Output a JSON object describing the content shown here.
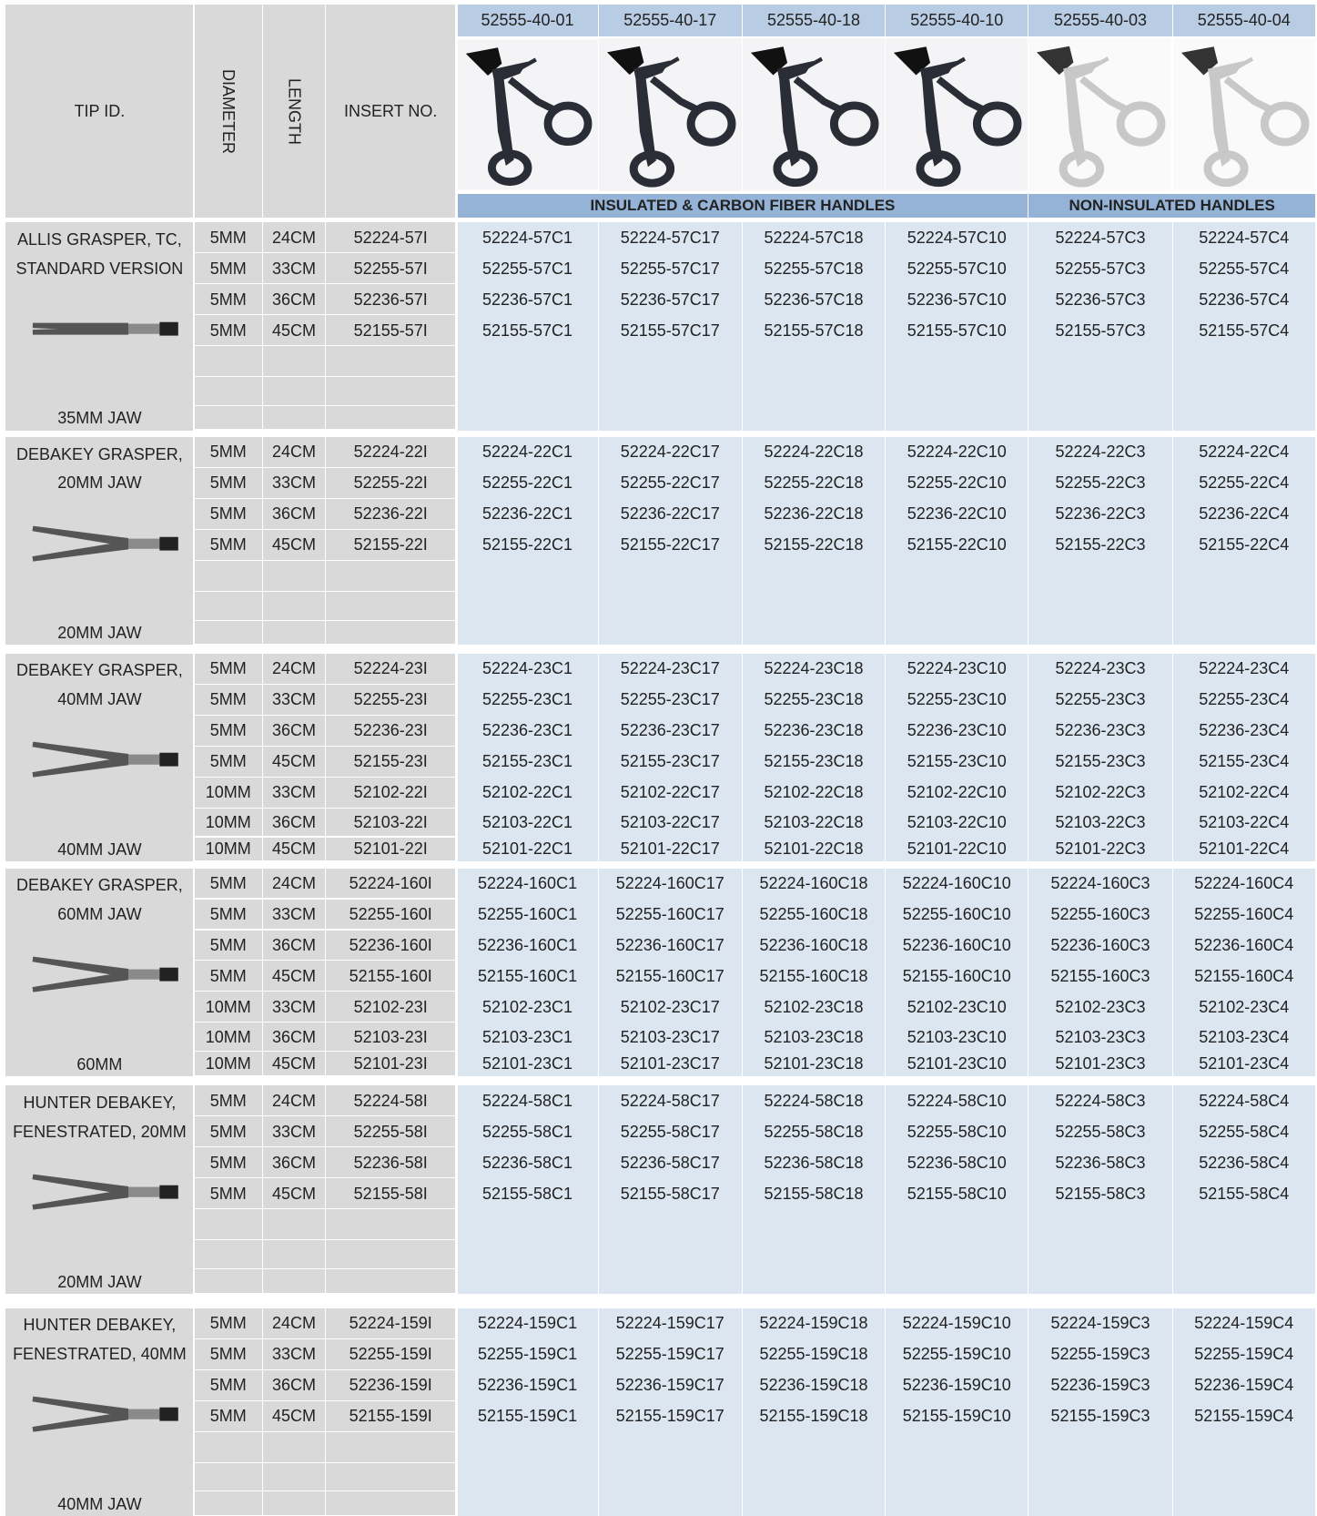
{
  "header": {
    "tip_id": "TIP ID.",
    "diameter": "DIAMETER",
    "length": "LENGTH",
    "insert_no": "INSERT NO.",
    "handles": [
      "52555-40-01",
      "52555-40-17",
      "52555-40-18",
      "52555-40-10",
      "52555-40-03",
      "52555-40-04"
    ],
    "handle_groups": [
      "INSULATED & CARBON FIBER HANDLES",
      "NON-INSULATED HANDLES"
    ]
  },
  "sections": [
    {
      "name_lines": [
        "ALLIS GRASPER, TC,",
        "STANDARD VERSION"
      ],
      "jaw": "35MM JAW",
      "rows": [
        [
          "5MM",
          "24CM",
          "52224-57I",
          "52224-57C1",
          "52224-57C17",
          "52224-57C18",
          "52224-57C10",
          "52224-57C3",
          "52224-57C4"
        ],
        [
          "5MM",
          "33CM",
          "52255-57I",
          "52255-57C1",
          "52255-57C17",
          "52255-57C18",
          "52255-57C10",
          "52255-57C3",
          "52255-57C4"
        ],
        [
          "5MM",
          "36CM",
          "52236-57I",
          "52236-57C1",
          "52236-57C17",
          "52236-57C18",
          "52236-57C10",
          "52236-57C3",
          "52236-57C4"
        ],
        [
          "5MM",
          "45CM",
          "52155-57I",
          "52155-57C1",
          "52155-57C17",
          "52155-57C18",
          "52155-57C10",
          "52155-57C3",
          "52155-57C4"
        ]
      ]
    },
    {
      "name_lines": [
        "DEBAKEY GRASPER,",
        "20MM JAW"
      ],
      "jaw": "20MM JAW",
      "rows": [
        [
          "5MM",
          "24CM",
          "52224-22I",
          "52224-22C1",
          "52224-22C17",
          "52224-22C18",
          "52224-22C10",
          "52224-22C3",
          "52224-22C4"
        ],
        [
          "5MM",
          "33CM",
          "52255-22I",
          "52255-22C1",
          "52255-22C17",
          "52255-22C18",
          "52255-22C10",
          "52255-22C3",
          "52255-22C4"
        ],
        [
          "5MM",
          "36CM",
          "52236-22I",
          "52236-22C1",
          "52236-22C17",
          "52236-22C18",
          "52236-22C10",
          "52236-22C3",
          "52236-22C4"
        ],
        [
          "5MM",
          "45CM",
          "52155-22I",
          "52155-22C1",
          "52155-22C17",
          "52155-22C18",
          "52155-22C10",
          "52155-22C3",
          "52155-22C4"
        ]
      ]
    },
    {
      "name_lines": [
        "DEBAKEY GRASPER,",
        "40MM JAW"
      ],
      "jaw": "40MM JAW",
      "rows": [
        [
          "5MM",
          "24CM",
          "52224-23I",
          "52224-23C1",
          "52224-23C17",
          "52224-23C18",
          "52224-23C10",
          "52224-23C3",
          "52224-23C4"
        ],
        [
          "5MM",
          "33CM",
          "52255-23I",
          "52255-23C1",
          "52255-23C17",
          "52255-23C18",
          "52255-23C10",
          "52255-23C3",
          "52255-23C4"
        ],
        [
          "5MM",
          "36CM",
          "52236-23I",
          "52236-23C1",
          "52236-23C17",
          "52236-23C18",
          "52236-23C10",
          "52236-23C3",
          "52236-23C4"
        ],
        [
          "5MM",
          "45CM",
          "52155-23I",
          "52155-23C1",
          "52155-23C17",
          "52155-23C18",
          "52155-23C10",
          "52155-23C3",
          "52155-23C4"
        ],
        [
          "10MM",
          "33CM",
          "52102-22I",
          "52102-22C1",
          "52102-22C17",
          "52102-22C18",
          "52102-22C10",
          "52102-22C3",
          "52102-22C4"
        ],
        [
          "10MM",
          "36CM",
          "52103-22I",
          "52103-22C1",
          "52103-22C17",
          "52103-22C18",
          "52103-22C10",
          "52103-22C3",
          "52103-22C4"
        ],
        [
          "10MM",
          "45CM",
          "52101-22I",
          "52101-22C1",
          "52101-22C17",
          "52101-22C18",
          "52101-22C10",
          "52101-22C3",
          "52101-22C4"
        ]
      ]
    },
    {
      "name_lines": [
        "DEBAKEY GRASPER,",
        "60MM JAW"
      ],
      "jaw": "60MM",
      "rows": [
        [
          "5MM",
          "24CM",
          "52224-160I",
          "52224-160C1",
          "52224-160C17",
          "52224-160C18",
          "52224-160C10",
          "52224-160C3",
          "52224-160C4"
        ],
        [
          "5MM",
          "33CM",
          "52255-160I",
          "52255-160C1",
          "52255-160C17",
          "52255-160C18",
          "52255-160C10",
          "52255-160C3",
          "52255-160C4"
        ],
        [
          "5MM",
          "36CM",
          "52236-160I",
          "52236-160C1",
          "52236-160C17",
          "52236-160C18",
          "52236-160C10",
          "52236-160C3",
          "52236-160C4"
        ],
        [
          "5MM",
          "45CM",
          "52155-160I",
          "52155-160C1",
          "52155-160C17",
          "52155-160C18",
          "52155-160C10",
          "52155-160C3",
          "52155-160C4"
        ],
        [
          "10MM",
          "33CM",
          "52102-23I",
          "52102-23C1",
          "52102-23C17",
          "52102-23C18",
          "52102-23C10",
          "52102-23C3",
          "52102-23C4"
        ],
        [
          "10MM",
          "36CM",
          "52103-23I",
          "52103-23C1",
          "52103-23C17",
          "52103-23C18",
          "52103-23C10",
          "52103-23C3",
          "52103-23C4"
        ],
        [
          "10MM",
          "45CM",
          "52101-23I",
          "52101-23C1",
          "52101-23C17",
          "52101-23C18",
          "52101-23C10",
          "52101-23C3",
          "52101-23C4"
        ]
      ]
    },
    {
      "name_lines": [
        "HUNTER DEBAKEY,",
        "FENESTRATED, 20MM"
      ],
      "jaw": "20MM JAW",
      "rows": [
        [
          "5MM",
          "24CM",
          "52224-58I",
          "52224-58C1",
          "52224-58C17",
          "52224-58C18",
          "52224-58C10",
          "52224-58C3",
          "52224-58C4"
        ],
        [
          "5MM",
          "33CM",
          "52255-58I",
          "52255-58C1",
          "52255-58C17",
          "52255-58C18",
          "52255-58C10",
          "52255-58C3",
          "52255-58C4"
        ],
        [
          "5MM",
          "36CM",
          "52236-58I",
          "52236-58C1",
          "52236-58C17",
          "52236-58C18",
          "52236-58C10",
          "52236-58C3",
          "52236-58C4"
        ],
        [
          "5MM",
          "45CM",
          "52155-58I",
          "52155-58C1",
          "52155-58C17",
          "52155-58C18",
          "52155-58C10",
          "52155-58C3",
          "52155-58C4"
        ]
      ]
    },
    {
      "name_lines": [
        "HUNTER DEBAKEY,",
        "FENESTRATED, 40MM"
      ],
      "jaw": "40MM JAW",
      "rows": [
        [
          "5MM",
          "24CM",
          "52224-159I",
          "52224-159C1",
          "52224-159C17",
          "52224-159C18",
          "52224-159C10",
          "52224-159C3",
          "52224-159C4"
        ],
        [
          "5MM",
          "33CM",
          "52255-159I",
          "52255-159C1",
          "52255-159C17",
          "52255-159C18",
          "52255-159C10",
          "52255-159C3",
          "52255-159C4"
        ],
        [
          "5MM",
          "36CM",
          "52236-159I",
          "52236-159C1",
          "52236-159C17",
          "52236-159C18",
          "52236-159C10",
          "52236-159C3",
          "52236-159C4"
        ],
        [
          "5MM",
          "45CM",
          "52155-159I",
          "52155-159C1",
          "52155-159C17",
          "52155-159C18",
          "52155-159C10",
          "52155-159C3",
          "52155-159C4"
        ]
      ]
    }
  ]
}
